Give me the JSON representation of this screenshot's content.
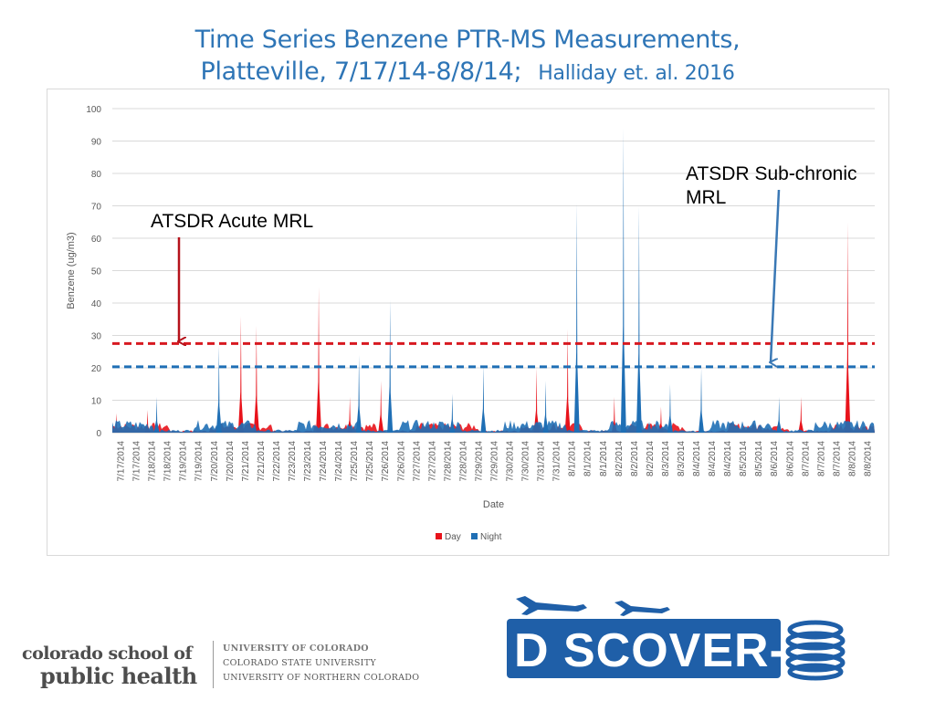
{
  "slide": {
    "title_line1": "Time Series Benzene PTR-MS Measurements,",
    "title_line2": "Platteville, 7/17/14-8/8/14;",
    "citation": "Halliday et. al. 2016"
  },
  "annotations": {
    "acute_label": "ATSDR Acute MRL",
    "subchronic_label_line1": "ATSDR Sub-chronic",
    "subchronic_label_line2": "MRL"
  },
  "chart_data": {
    "type": "area",
    "xlabel": "Date",
    "ylabel": "Benzene (ug/m3)",
    "ylim": [
      0,
      100
    ],
    "yticks": [
      0,
      10,
      20,
      30,
      40,
      50,
      60,
      70,
      80,
      90,
      100
    ],
    "grid": true,
    "legend_position": "bottom",
    "x_tick_labels": [
      "7/17/2014",
      "7/17/2014",
      "7/18/2014",
      "7/18/2014",
      "7/19/2014",
      "7/19/2014",
      "7/20/2014",
      "7/20/2014",
      "7/21/2014",
      "7/21/2014",
      "7/22/2014",
      "7/23/2014",
      "7/23/2014",
      "7/24/2014",
      "7/24/2014",
      "7/25/2014",
      "7/25/2014",
      "7/26/2014",
      "7/26/2014",
      "7/27/2014",
      "7/27/2014",
      "7/28/2014",
      "7/28/2014",
      "7/29/2014",
      "7/29/2014",
      "7/30/2014",
      "7/30/2014",
      "7/31/2014",
      "7/31/2014",
      "8/1/2014",
      "8/1/2014",
      "8/1/2014",
      "8/2/2014",
      "8/2/2014",
      "8/2/2014",
      "8/3/2014",
      "8/3/2014",
      "8/4/2014",
      "8/4/2014",
      "8/4/2014",
      "8/5/2014",
      "8/5/2014",
      "8/6/2014",
      "8/6/2014",
      "8/7/2014",
      "8/7/2014",
      "8/7/2014",
      "8/8/2014",
      "8/8/2014"
    ],
    "series": [
      {
        "name": "Day",
        "color": "#e8131b",
        "peaks": [
          {
            "date": "7/17/2014",
            "value": 6
          },
          {
            "date": "7/18/2014",
            "value": 7
          },
          {
            "date": "7/21/2014",
            "value": 36
          },
          {
            "date": "7/21/2014",
            "value": 33
          },
          {
            "date": "7/24/2014",
            "value": 45
          },
          {
            "date": "7/25/2014",
            "value": 11
          },
          {
            "date": "7/26/2014",
            "value": 16
          },
          {
            "date": "7/31/2014",
            "value": 20
          },
          {
            "date": "8/1/2014",
            "value": 32
          },
          {
            "date": "8/2/2014",
            "value": 11
          },
          {
            "date": "8/3/2014",
            "value": 8
          },
          {
            "date": "8/7/2014",
            "value": 11
          },
          {
            "date": "8/8/2014",
            "value": 65
          }
        ]
      },
      {
        "name": "Night",
        "color": "#1f6fb5",
        "peaks": [
          {
            "date": "7/18/2014",
            "value": 11
          },
          {
            "date": "7/20/2014",
            "value": 27
          },
          {
            "date": "7/25/2014",
            "value": 24
          },
          {
            "date": "7/26/2014",
            "value": 41
          },
          {
            "date": "7/28/2014",
            "value": 12
          },
          {
            "date": "7/29/2014",
            "value": 21
          },
          {
            "date": "7/31/2014",
            "value": 16
          },
          {
            "date": "8/1/2014",
            "value": 71
          },
          {
            "date": "8/2/2014",
            "value": 94
          },
          {
            "date": "8/2/2014",
            "value": 70
          },
          {
            "date": "8/3/2014",
            "value": 15
          },
          {
            "date": "8/4/2014",
            "value": 20
          },
          {
            "date": "8/6/2014",
            "value": 11
          }
        ]
      }
    ],
    "reference_lines": [
      {
        "name": "ATSDR Acute MRL",
        "value": 27.5,
        "color": "#d71920",
        "style": "dashed"
      },
      {
        "name": "ATSDR Sub-chronic MRL",
        "value": 20.3,
        "color": "#1f6fb5",
        "style": "dashed"
      }
    ]
  },
  "footer": {
    "csph_line1": "colorado school of",
    "csph_line2": "public health",
    "univ_main": "UNIVERSITY OF COLORADO",
    "univ_2": "COLORADO STATE UNIVERSITY",
    "univ_3": "UNIVERSITY OF NORTHERN COLORADO",
    "discover_logo_text": "D SCOVER-AQ",
    "discover_color": "#1f5fa8"
  }
}
